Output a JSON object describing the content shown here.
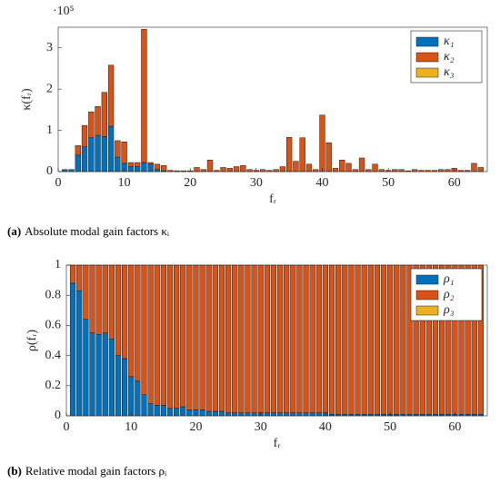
{
  "chart_data": [
    {
      "type": "bar",
      "stacked": true,
      "y_multiplier": "·10⁵",
      "ylabel": "κ(fᵣ)",
      "xlabel": "fᵣ",
      "caption_label": "(a)",
      "caption": "Absolute modal gain factors κᵢ",
      "xlim": [
        0,
        65
      ],
      "xticks": [
        0,
        10,
        20,
        30,
        40,
        50,
        60
      ],
      "ylim": [
        0,
        3.5
      ],
      "yticks": [
        0,
        1,
        2,
        3
      ],
      "legend": "northeast",
      "x": [
        1,
        2,
        3,
        4,
        5,
        6,
        7,
        8,
        9,
        10,
        11,
        12,
        13,
        14,
        15,
        16,
        17,
        18,
        19,
        20,
        21,
        22,
        23,
        24,
        25,
        26,
        27,
        28,
        29,
        30,
        31,
        32,
        33,
        34,
        35,
        36,
        37,
        38,
        39,
        40,
        41,
        42,
        43,
        44,
        45,
        46,
        47,
        48,
        49,
        50,
        51,
        52,
        53,
        54,
        55,
        56,
        57,
        58,
        59,
        60,
        61,
        62,
        63,
        64
      ],
      "series": [
        {
          "name": "κ₁",
          "color": "#0072bd",
          "values": [
            0.05,
            0.05,
            0.4,
            0.6,
            0.82,
            0.88,
            0.85,
            1.1,
            0.35,
            0.2,
            0.12,
            0.12,
            0.22,
            0.18,
            0.05,
            0.02,
            0,
            0,
            0,
            0,
            0,
            0,
            0,
            0,
            0,
            0,
            0,
            0,
            0,
            0,
            0,
            0,
            0,
            0,
            0,
            0,
            0,
            0,
            0,
            0,
            0,
            0,
            0,
            0,
            0,
            0,
            0,
            0,
            0,
            0,
            0,
            0,
            0,
            0,
            0,
            0,
            0,
            0,
            0,
            0,
            0,
            0,
            0,
            0
          ]
        },
        {
          "name": "κ₂",
          "color": "#d95319",
          "values": [
            0,
            0,
            0.23,
            0.52,
            0.63,
            0.7,
            1.07,
            1.48,
            0.4,
            0.52,
            0.1,
            0.1,
            3.23,
            0.04,
            0.13,
            0.13,
            0.03,
            0.02,
            0.02,
            0.02,
            0.1,
            0.05,
            0.28,
            0.03,
            0.1,
            0.08,
            0.12,
            0.15,
            0.05,
            0.03,
            0.05,
            0.03,
            0.05,
            0.12,
            0.83,
            0.25,
            0.82,
            0.18,
            0.05,
            1.37,
            0.7,
            0.08,
            0.28,
            0.2,
            0.05,
            0.33,
            0.05,
            0.18,
            0.05,
            0.03,
            0.05,
            0.05,
            0.02,
            0.05,
            0.03,
            0.03,
            0.03,
            0.05,
            0.05,
            0.08,
            0.03,
            0.03,
            0.2,
            0.1
          ]
        },
        {
          "name": "κ₃",
          "color": "#edb120",
          "values": [
            0,
            0,
            0,
            0,
            0,
            0,
            0,
            0,
            0,
            0,
            0,
            0,
            0,
            0,
            0,
            0,
            0,
            0,
            0,
            0,
            0,
            0,
            0,
            0,
            0,
            0,
            0,
            0,
            0,
            0,
            0,
            0,
            0,
            0,
            0,
            0,
            0,
            0,
            0,
            0,
            0,
            0,
            0,
            0,
            0,
            0,
            0,
            0,
            0,
            0,
            0,
            0,
            0,
            0,
            0,
            0,
            0,
            0,
            0,
            0,
            0,
            0,
            0,
            0
          ]
        }
      ]
    },
    {
      "type": "bar",
      "stacked": true,
      "ylabel": "ρ(fᵣ)",
      "xlabel": "fᵣ",
      "caption_label": "(b)",
      "caption": "Relative modal gain factors ρᵢ",
      "xlim": [
        0,
        65
      ],
      "xticks": [
        0,
        10,
        20,
        30,
        40,
        50,
        60
      ],
      "ylim": [
        0,
        1
      ],
      "yticks": [
        0,
        0.2,
        0.4,
        0.6,
        0.8,
        1
      ],
      "legend": "northeast",
      "x": [
        1,
        2,
        3,
        4,
        5,
        6,
        7,
        8,
        9,
        10,
        11,
        12,
        13,
        14,
        15,
        16,
        17,
        18,
        19,
        20,
        21,
        22,
        23,
        24,
        25,
        26,
        27,
        28,
        29,
        30,
        31,
        32,
        33,
        34,
        35,
        36,
        37,
        38,
        39,
        40,
        41,
        42,
        43,
        44,
        45,
        46,
        47,
        48,
        49,
        50,
        51,
        52,
        53,
        54,
        55,
        56,
        57,
        58,
        59,
        60,
        61,
        62,
        63,
        64
      ],
      "series": [
        {
          "name": "ρ₁",
          "color": "#0072bd",
          "values": [
            0.88,
            0.83,
            0.64,
            0.55,
            0.54,
            0.55,
            0.51,
            0.4,
            0.38,
            0.26,
            0.23,
            0.14,
            0.08,
            0.07,
            0.07,
            0.05,
            0.05,
            0.06,
            0.04,
            0.04,
            0.04,
            0.03,
            0.03,
            0.03,
            0.02,
            0.02,
            0.02,
            0.02,
            0.02,
            0.02,
            0.02,
            0.02,
            0.02,
            0.02,
            0.02,
            0.02,
            0.02,
            0.02,
            0.02,
            0.02,
            0.01,
            0.01,
            0.01,
            0.01,
            0.01,
            0.01,
            0.01,
            0.01,
            0.01,
            0.01,
            0.01,
            0.01,
            0.01,
            0.01,
            0.01,
            0.01,
            0.01,
            0.01,
            0.01,
            0.01,
            0.01,
            0.01,
            0.01,
            0.01
          ]
        },
        {
          "name": "ρ₂",
          "color": "#d95319",
          "values": [
            0.12,
            0.17,
            0.36,
            0.45,
            0.46,
            0.45,
            0.49,
            0.6,
            0.62,
            0.74,
            0.77,
            0.86,
            0.92,
            0.93,
            0.93,
            0.95,
            0.95,
            0.94,
            0.96,
            0.96,
            0.96,
            0.97,
            0.97,
            0.97,
            0.98,
            0.98,
            0.98,
            0.98,
            0.98,
            0.98,
            0.98,
            0.98,
            0.98,
            0.98,
            0.98,
            0.98,
            0.98,
            0.98,
            0.98,
            0.98,
            0.99,
            0.99,
            0.99,
            0.99,
            0.99,
            0.99,
            0.99,
            0.99,
            0.99,
            0.99,
            0.99,
            0.99,
            0.99,
            0.99,
            0.99,
            0.99,
            0.99,
            0.99,
            0.99,
            0.99,
            0.99,
            0.99,
            0.99,
            0.99
          ]
        },
        {
          "name": "ρ₃",
          "color": "#edb120",
          "values": [
            0,
            0,
            0,
            0,
            0,
            0,
            0,
            0,
            0,
            0,
            0,
            0,
            0,
            0,
            0,
            0,
            0,
            0,
            0,
            0,
            0,
            0,
            0,
            0,
            0,
            0,
            0,
            0,
            0,
            0,
            0,
            0,
            0,
            0,
            0,
            0,
            0,
            0,
            0,
            0,
            0,
            0,
            0,
            0,
            0,
            0,
            0,
            0,
            0,
            0,
            0,
            0,
            0,
            0,
            0,
            0,
            0,
            0,
            0,
            0,
            0,
            0,
            0,
            0
          ]
        }
      ]
    }
  ]
}
